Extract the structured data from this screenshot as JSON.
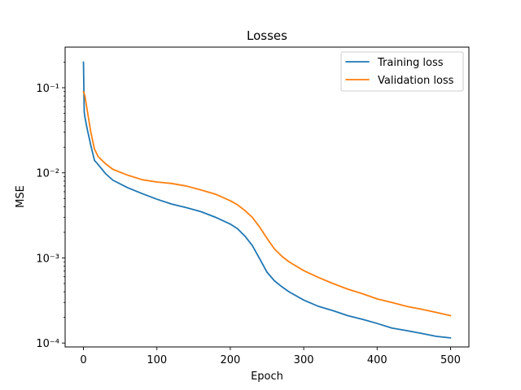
{
  "chart_data": {
    "type": "line",
    "title": "Losses",
    "xlabel": "Epoch",
    "ylabel": "MSE",
    "yscale": "log",
    "xlim": [
      -25,
      525
    ],
    "ylim": [
      9e-05,
      0.3
    ],
    "grid": false,
    "legend_position": "top-right",
    "x_ticks": [
      0,
      100,
      200,
      300,
      400,
      500
    ],
    "x_tick_labels": [
      "0",
      "100",
      "200",
      "300",
      "400",
      "500"
    ],
    "y_ticks": [
      0.0001,
      0.001,
      0.01,
      0.1
    ],
    "y_tick_labels": [
      "10⁻⁴",
      "10⁻³",
      "10⁻²",
      "10⁻¹"
    ],
    "series": [
      {
        "name": "Training loss",
        "color": "#1f77b4",
        "x": [
          0,
          1,
          2,
          5,
          10,
          15,
          20,
          30,
          40,
          60,
          80,
          100,
          120,
          140,
          160,
          180,
          200,
          210,
          220,
          230,
          240,
          250,
          260,
          270,
          280,
          300,
          320,
          340,
          360,
          380,
          400,
          420,
          440,
          460,
          480,
          500
        ],
        "y": [
          0.2,
          0.052,
          0.045,
          0.033,
          0.021,
          0.014,
          0.0125,
          0.0098,
          0.0082,
          0.0067,
          0.0057,
          0.0049,
          0.0043,
          0.0039,
          0.0035,
          0.003,
          0.0025,
          0.0022,
          0.0018,
          0.0014,
          0.00098,
          0.00068,
          0.00054,
          0.00046,
          0.0004,
          0.00032,
          0.00027,
          0.00024,
          0.00021,
          0.00019,
          0.00017,
          0.00015,
          0.00014,
          0.00013,
          0.00012,
          0.000115
        ]
      },
      {
        "name": "Validation loss",
        "color": "#ff7f0e",
        "x": [
          0,
          2,
          5,
          10,
          15,
          20,
          30,
          40,
          60,
          80,
          100,
          120,
          140,
          160,
          180,
          200,
          210,
          220,
          230,
          240,
          250,
          260,
          270,
          280,
          300,
          320,
          340,
          360,
          380,
          400,
          420,
          440,
          460,
          480,
          500
        ],
        "y": [
          0.09,
          0.08,
          0.055,
          0.03,
          0.019,
          0.0155,
          0.0128,
          0.011,
          0.0094,
          0.0083,
          0.0078,
          0.0075,
          0.007,
          0.0063,
          0.0056,
          0.0047,
          0.0042,
          0.0036,
          0.003,
          0.0023,
          0.0017,
          0.00128,
          0.00105,
          0.0009,
          0.00071,
          0.00059,
          0.0005,
          0.00043,
          0.00038,
          0.00033,
          0.0003,
          0.00027,
          0.00025,
          0.00023,
          0.00021
        ]
      }
    ]
  }
}
